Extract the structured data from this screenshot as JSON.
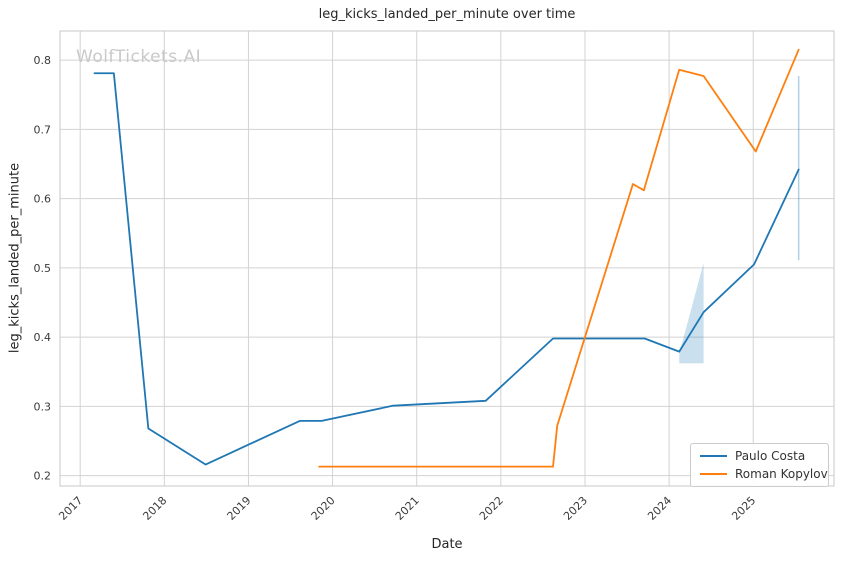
{
  "watermark": "WolfTickets.AI",
  "chart_data": {
    "type": "line",
    "title": "leg_kicks_landed_per_minute over time",
    "xlabel": "Date",
    "ylabel": "leg_kicks_landed_per_minute",
    "grid": true,
    "legend_position": "lower right",
    "xlim": [
      2016.76,
      2025.96
    ],
    "ylim": [
      0.185,
      0.842
    ],
    "x_ticks": [
      2017,
      2018,
      2019,
      2020,
      2021,
      2022,
      2023,
      2024,
      2025
    ],
    "y_ticks": [
      0.2,
      0.3,
      0.4,
      0.5,
      0.6,
      0.7,
      0.8
    ],
    "legend": [
      "Paulo Costa",
      "Roman Kopylov"
    ],
    "series": [
      {
        "name": "Paulo Costa",
        "color": "#1f77b4",
        "points": [
          [
            2017.17,
            0.781
          ],
          [
            2017.4,
            0.781
          ],
          [
            2017.81,
            0.268
          ],
          [
            2018.49,
            0.216
          ],
          [
            2019.61,
            0.279
          ],
          [
            2019.87,
            0.279
          ],
          [
            2020.72,
            0.301
          ],
          [
            2021.82,
            0.308
          ],
          [
            2022.62,
            0.398
          ],
          [
            2023.71,
            0.398
          ],
          [
            2024.12,
            0.379
          ],
          [
            2024.41,
            0.436
          ],
          [
            2025.01,
            0.505
          ],
          [
            2025.54,
            0.642
          ]
        ]
      },
      {
        "name": "Roman Kopylov",
        "color": "#ff7f0e",
        "points": [
          [
            2019.84,
            0.213
          ],
          [
            2022.62,
            0.213
          ],
          [
            2022.67,
            0.272
          ],
          [
            2023.57,
            0.621
          ],
          [
            2023.7,
            0.612
          ],
          [
            2024.12,
            0.786
          ],
          [
            2024.41,
            0.777
          ],
          [
            2025.03,
            0.668
          ],
          [
            2025.54,
            0.815
          ]
        ]
      }
    ],
    "confidence_band": {
      "series": "Paulo Costa",
      "color": "#1f77b4",
      "opacity": 0.23,
      "polygon": [
        [
          2024.12,
          0.376
        ],
        [
          2024.41,
          0.507
        ],
        [
          2024.41,
          0.362
        ],
        [
          2024.12,
          0.362
        ]
      ]
    },
    "error_whisker": {
      "series": "Paulo Costa",
      "x": 2025.54,
      "y_low": 0.511,
      "y_high": 0.777,
      "color": "#1f77b4",
      "opacity": 0.35
    },
    "style": {
      "grid_color": "#d2d2d2",
      "spine_color": "#c8c8c8",
      "tick_text_color": "#3a3a3a",
      "line_width": 1.8
    }
  }
}
